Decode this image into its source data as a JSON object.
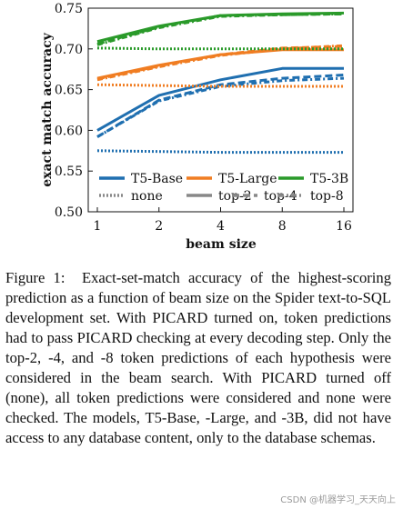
{
  "chart_data": {
    "type": "line",
    "xlabel": "beam size",
    "ylabel": "exact match accuracy",
    "x": [
      1,
      2,
      4,
      8,
      16
    ],
    "x_tick_labels": [
      "1",
      "2",
      "4",
      "8",
      "16"
    ],
    "x_scale": "log2",
    "ylim": [
      0.5,
      0.75
    ],
    "y_ticks": [
      0.5,
      0.55,
      0.6,
      0.65,
      0.7,
      0.75
    ],
    "y_tick_labels": [
      "0.50",
      "0.55",
      "0.60",
      "0.65",
      "0.70",
      "0.75"
    ],
    "grid": false,
    "legend_models": [
      {
        "label": "T5-Base",
        "color": "#1f6fb0"
      },
      {
        "label": "T5-Large",
        "color": "#f07d22"
      },
      {
        "label": "T5-3B",
        "color": "#2a9a2a"
      }
    ],
    "legend_modes": [
      {
        "label": "none",
        "dash": "none-dash"
      },
      {
        "label": "top-2",
        "dash": "top2-dash"
      },
      {
        "label": "top-4",
        "dash": "top4-dash"
      },
      {
        "label": "top-8",
        "dash": "top8-dash"
      }
    ],
    "series": [
      {
        "model": "T5-Base",
        "mode": "none",
        "values": [
          0.575,
          0.574,
          0.573,
          0.573,
          0.573
        ]
      },
      {
        "model": "T5-Base",
        "mode": "top-2",
        "values": [
          0.6,
          0.643,
          0.662,
          0.676,
          0.676
        ]
      },
      {
        "model": "T5-Base",
        "mode": "top-4",
        "values": [
          0.592,
          0.637,
          0.656,
          0.664,
          0.668
        ]
      },
      {
        "model": "T5-Base",
        "mode": "top-8",
        "values": [
          0.592,
          0.636,
          0.654,
          0.661,
          0.664
        ]
      },
      {
        "model": "T5-Large",
        "mode": "none",
        "values": [
          0.656,
          0.655,
          0.654,
          0.654,
          0.654
        ]
      },
      {
        "model": "T5-Large",
        "mode": "top-2",
        "values": [
          0.664,
          0.68,
          0.693,
          0.699,
          0.699
        ]
      },
      {
        "model": "T5-Large",
        "mode": "top-4",
        "values": [
          0.663,
          0.679,
          0.693,
          0.701,
          0.703
        ]
      },
      {
        "model": "T5-Large",
        "mode": "top-8",
        "values": [
          0.662,
          0.678,
          0.692,
          0.7,
          0.704
        ]
      },
      {
        "model": "T5-3B",
        "mode": "none",
        "values": [
          0.701,
          0.7,
          0.7,
          0.7,
          0.7
        ]
      },
      {
        "model": "T5-3B",
        "mode": "top-2",
        "values": [
          0.709,
          0.728,
          0.741,
          0.743,
          0.744
        ]
      },
      {
        "model": "T5-3B",
        "mode": "top-4",
        "values": [
          0.706,
          0.727,
          0.741,
          0.742,
          0.743
        ]
      },
      {
        "model": "T5-3B",
        "mode": "top-8",
        "values": [
          0.705,
          0.726,
          0.74,
          0.742,
          0.743
        ]
      }
    ]
  },
  "caption": {
    "label": "Figure 1:",
    "text": "Exact-set-match accuracy of the highest-scoring prediction as a function of beam size on the Spider text-to-SQL development set. With PICARD turned on, token predictions had to pass PICARD checking at every decoding step. Only the top-2, -4, and -8 token predictions of each hypothesis were considered in the beam search. With PICARD turned off (none), all token predictions were considered and none were checked. The models, T5-Base, -Large, and -3B, did not have access to any database content, only to the database schemas."
  },
  "watermark": "CSDN @机器学习_天天向上"
}
